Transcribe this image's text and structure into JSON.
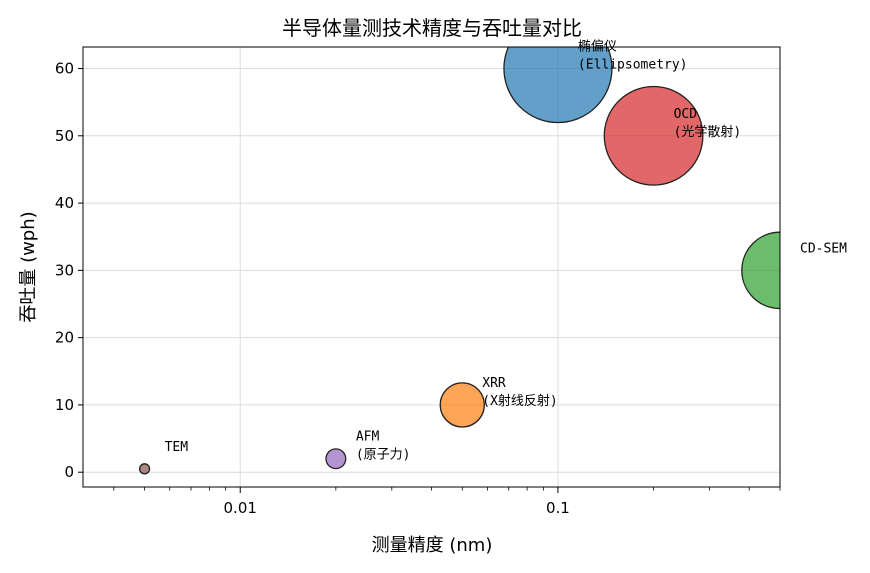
{
  "chart_data": {
    "type": "scatter",
    "title": "半导体量测技术精度与吞吐量对比",
    "xlabel": "测量精度 (nm)",
    "ylabel": "吞吐量 (wph)",
    "x_scale": "log",
    "xlim": [
      0.0032,
      0.5
    ],
    "ylim": [
      -2.2,
      63.2
    ],
    "x_ticks": [
      0.01,
      0.1
    ],
    "x_tick_labels": [
      "0.01",
      "0.1"
    ],
    "y_ticks": [
      0,
      10,
      20,
      30,
      40,
      50,
      60
    ],
    "y_tick_labels": [
      "0",
      "10",
      "20",
      "30",
      "40",
      "50",
      "60"
    ],
    "grid": true,
    "legend": "none",
    "bubble_size_encoding": "throughput",
    "points": [
      {
        "x": 0.1,
        "y": 60,
        "label_lines": [
          "椭偏仪",
          "(Ellipsometry)"
        ],
        "color": "#1f77b4"
      },
      {
        "x": 0.2,
        "y": 50,
        "label_lines": [
          "OCD",
          "(光学散射)"
        ],
        "color": "#d62728"
      },
      {
        "x": 0.5,
        "y": 30,
        "label_lines": [
          "CD-SEM"
        ],
        "color": "#2ca02c"
      },
      {
        "x": 0.05,
        "y": 10,
        "label_lines": [
          "XRR",
          "(X射线反射)"
        ],
        "color": "#ff7f0e"
      },
      {
        "x": 0.02,
        "y": 2,
        "label_lines": [
          "AFM",
          "(原子力)"
        ],
        "color": "#9467bd"
      },
      {
        "x": 0.005,
        "y": 0.5,
        "label_lines": [
          "TEM"
        ],
        "color": "#8c564b"
      }
    ]
  }
}
